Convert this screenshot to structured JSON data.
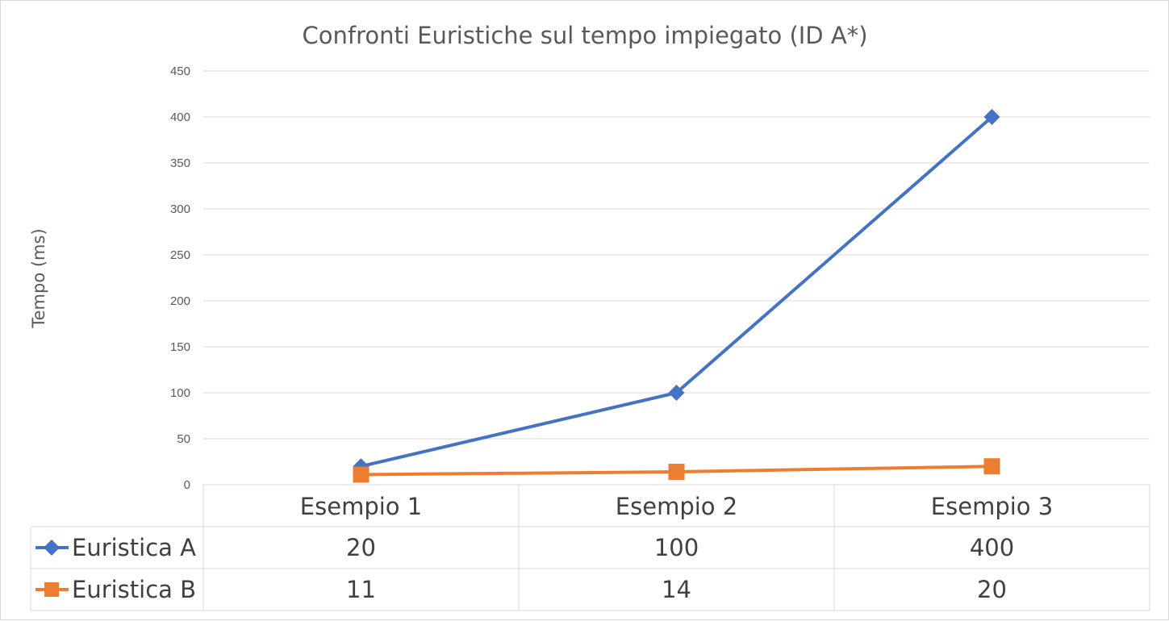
{
  "chart_data": {
    "type": "line",
    "title": "Confronti Euristiche sul tempo impiegato (ID A*)",
    "xlabel": "",
    "ylabel": "Tempo (ms)",
    "ylim": [
      0,
      450
    ],
    "yticks": [
      0,
      50,
      100,
      150,
      200,
      250,
      300,
      350,
      400,
      450
    ],
    "categories": [
      "Esempio 1",
      "Esempio 2",
      "Esempio 3"
    ],
    "grid": true,
    "legend": "data-table",
    "series": [
      {
        "name": "Euristica A",
        "values": [
          20,
          100,
          400
        ],
        "color": "#4472c4",
        "marker": "diamond"
      },
      {
        "name": "Euristica B",
        "values": [
          11,
          14,
          20
        ],
        "color": "#ed7d31",
        "marker": "square"
      }
    ]
  }
}
